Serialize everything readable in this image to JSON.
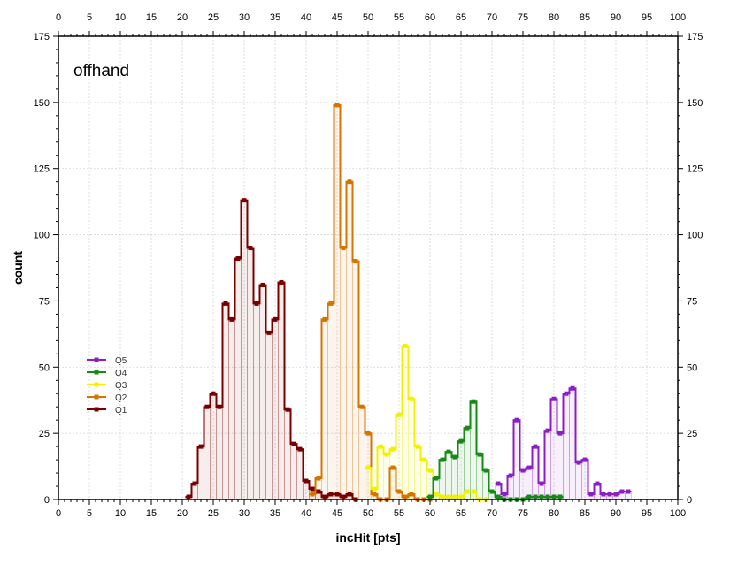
{
  "chart_data": {
    "type": "line",
    "style": "step-histogram",
    "xlabel": "incHit [pts]",
    "ylabel": "count",
    "annotation": "offhand",
    "xlim": [
      0,
      100
    ],
    "ylim": [
      0,
      175
    ],
    "xticks": [
      0,
      5,
      10,
      15,
      20,
      25,
      30,
      35,
      40,
      45,
      50,
      55,
      60,
      65,
      70,
      75,
      80,
      85,
      90,
      95,
      100
    ],
    "yticks": [
      0,
      25,
      50,
      75,
      100,
      125,
      150,
      175
    ],
    "grid": true,
    "legend_position": "left",
    "legend_order": [
      "Q5",
      "Q4",
      "Q3",
      "Q2",
      "Q1"
    ],
    "series": [
      {
        "name": "Q1",
        "color": "#7a0000",
        "x": [
          21,
          22,
          23,
          24,
          25,
          26,
          27,
          28,
          29,
          30,
          31,
          32,
          33,
          34,
          35,
          36,
          37,
          38,
          39,
          40,
          41,
          42,
          43,
          44,
          45,
          46,
          47,
          48
        ],
        "values": [
          1,
          6,
          20,
          35,
          40,
          35,
          74,
          68,
          91,
          113,
          95,
          74,
          81,
          63,
          68,
          82,
          34,
          21,
          19,
          7,
          4,
          3,
          1,
          2,
          2,
          1,
          2,
          0
        ]
      },
      {
        "name": "Q2",
        "color": "#d67400",
        "x": [
          41,
          42,
          43,
          44,
          45,
          46,
          47,
          48,
          49,
          50,
          51,
          52,
          53,
          54,
          55,
          56,
          57,
          58,
          59,
          60
        ],
        "values": [
          2,
          8,
          68,
          74,
          149,
          95,
          120,
          90,
          35,
          25,
          2,
          0,
          0,
          12,
          3,
          1,
          2,
          0,
          0,
          0
        ]
      },
      {
        "name": "Q3",
        "color": "#f2f200",
        "x": [
          50,
          51,
          52,
          53,
          54,
          55,
          56,
          57,
          58,
          59,
          60,
          61,
          62,
          63,
          64,
          65,
          66,
          67,
          68,
          69
        ],
        "values": [
          12,
          4,
          20,
          17,
          19,
          32,
          58,
          38,
          20,
          15,
          11,
          2,
          1,
          1,
          1,
          1,
          3,
          3,
          0,
          0
        ]
      },
      {
        "name": "Q4",
        "color": "#158a15",
        "x": [
          60,
          61,
          62,
          63,
          64,
          65,
          66,
          67,
          68,
          69,
          70,
          71,
          72,
          73,
          74,
          75,
          76,
          77,
          78,
          79,
          80,
          81
        ],
        "values": [
          1,
          8,
          15,
          18,
          16,
          22,
          27,
          37,
          17,
          11,
          3,
          1,
          0,
          0,
          0,
          0,
          1,
          1,
          1,
          1,
          1,
          1
        ]
      },
      {
        "name": "Q5",
        "color": "#8c1fc4",
        "x": [
          71,
          72,
          73,
          74,
          75,
          76,
          77,
          78,
          79,
          80,
          81,
          82,
          83,
          84,
          85,
          86,
          87,
          88,
          89,
          90,
          91,
          92
        ],
        "values": [
          6,
          2,
          9,
          30,
          11,
          12,
          20,
          6,
          26,
          38,
          25,
          40,
          42,
          14,
          15,
          2,
          6,
          2,
          2,
          2,
          3,
          3
        ]
      }
    ]
  }
}
